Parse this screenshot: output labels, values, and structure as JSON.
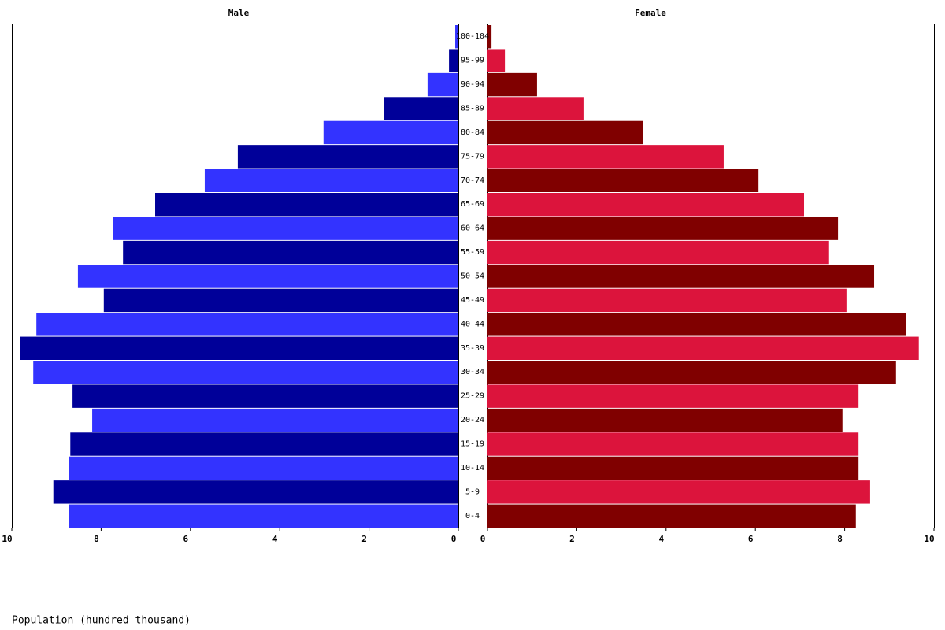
{
  "chart_data": {
    "type": "pyramid",
    "x_label": "Population (hundred thousand)",
    "categories": [
      "0-4",
      "5-9",
      "10-14",
      "15-19",
      "20-24",
      "25-29",
      "30-34",
      "35-39",
      "40-44",
      "45-49",
      "50-54",
      "55-59",
      "60-64",
      "65-69",
      "70-74",
      "75-79",
      "80-84",
      "85-89",
      "90-94",
      "95-99",
      "100-104"
    ],
    "series": [
      {
        "name": "Male",
        "colors": [
          "#3333ff",
          "#000099"
        ],
        "values": [
          8.73,
          9.07,
          8.73,
          8.69,
          8.2,
          8.64,
          9.52,
          9.81,
          9.45,
          7.94,
          8.52,
          7.51,
          7.74,
          6.79,
          5.68,
          4.94,
          3.02,
          1.66,
          0.69,
          0.21,
          0.07
        ]
      },
      {
        "name": "Female",
        "colors": [
          "#800000",
          "#dc143c"
        ],
        "values": [
          8.25,
          8.57,
          8.31,
          8.31,
          7.95,
          8.31,
          9.15,
          9.66,
          9.38,
          8.04,
          8.66,
          7.65,
          7.85,
          7.09,
          6.07,
          5.29,
          3.49,
          2.15,
          1.11,
          0.39,
          0.09
        ]
      }
    ],
    "xlim": [
      0,
      10
    ],
    "xticks": [
      0,
      2,
      4,
      6,
      8,
      10
    ]
  }
}
